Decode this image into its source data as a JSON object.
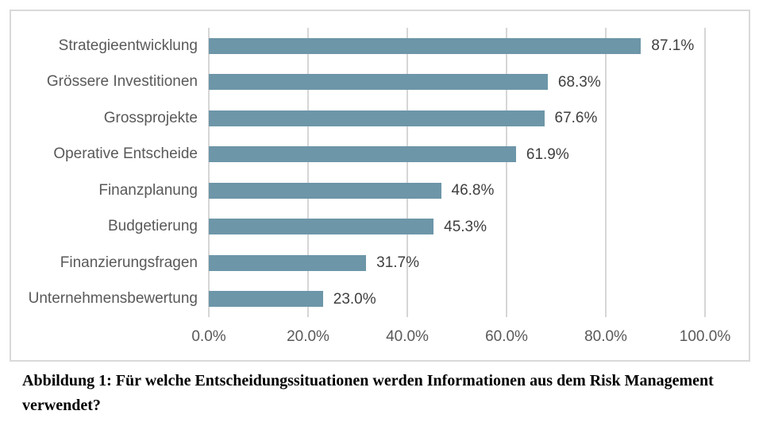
{
  "chart_data": {
    "type": "bar",
    "orientation": "horizontal",
    "title": "",
    "xlabel": "",
    "ylabel": "",
    "xlim": [
      0,
      100
    ],
    "grid": true,
    "legend": "none",
    "bar_color": "#6d96a8",
    "categories": [
      "Strategieentwicklung",
      "Grössere Investitionen",
      "Grossprojekte",
      "Operative Entscheide",
      "Finanzplanung",
      "Budgetierung",
      "Finanzierungsfragen",
      "Unternehmensbewertung"
    ],
    "values": [
      87.1,
      68.3,
      67.6,
      61.9,
      46.8,
      45.3,
      31.7,
      23.0
    ],
    "value_labels": [
      "87.1%",
      "68.3%",
      "67.6%",
      "61.9%",
      "46.8%",
      "45.3%",
      "31.7%",
      "23.0%"
    ],
    "x_ticks": [
      "0.0%",
      "20.0%",
      "40.0%",
      "60.0%",
      "80.0%",
      "100.0%"
    ],
    "x_tick_values": [
      0,
      20,
      40,
      60,
      80,
      100
    ]
  },
  "caption": "Abbildung 1: Für welche Entscheidungssituationen werden Informationen aus dem Risk Management verwendet?",
  "colors": {
    "bar": "#6d96a8",
    "gridline": "#d6d6d6",
    "frame_border": "#d9d9d9",
    "category_label": "#595959",
    "tick_label": "#595959",
    "value_label": "#3f3f3f",
    "caption_text": "#000000"
  }
}
